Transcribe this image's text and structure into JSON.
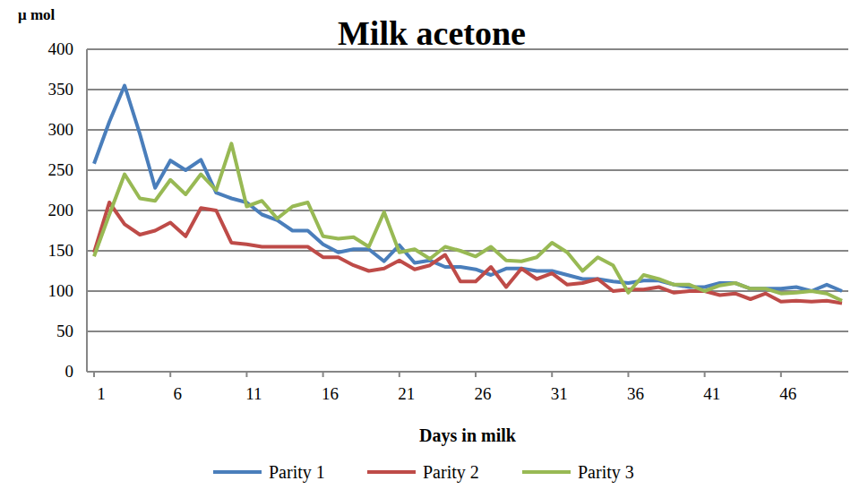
{
  "chart_data": {
    "type": "line",
    "title": "Milk acetone",
    "y_label": "μ mol",
    "x_label": "Days in milk",
    "x": [
      1,
      2,
      3,
      4,
      5,
      6,
      7,
      8,
      9,
      10,
      11,
      12,
      13,
      14,
      15,
      16,
      17,
      18,
      19,
      20,
      21,
      22,
      23,
      24,
      25,
      26,
      27,
      28,
      29,
      30,
      31,
      32,
      33,
      34,
      35,
      36,
      37,
      38,
      39,
      40,
      41,
      42,
      43,
      44,
      45,
      46,
      47,
      48,
      49,
      50
    ],
    "xlim": [
      1,
      50
    ],
    "xticks": [
      1,
      6,
      11,
      16,
      21,
      26,
      31,
      36,
      41,
      46
    ],
    "ylim": [
      0,
      400
    ],
    "yticks": [
      0,
      50,
      100,
      150,
      200,
      250,
      300,
      350,
      400
    ],
    "grid": true,
    "legend": "bottom",
    "series": [
      {
        "name": "Parity 1",
        "color": "#4a7ebb",
        "values": [
          258,
          310,
          355,
          295,
          228,
          262,
          250,
          263,
          222,
          215,
          210,
          195,
          188,
          175,
          175,
          158,
          148,
          152,
          152,
          137,
          157,
          135,
          138,
          130,
          130,
          127,
          120,
          128,
          128,
          125,
          125,
          120,
          115,
          115,
          112,
          110,
          113,
          113,
          108,
          105,
          105,
          110,
          110,
          103,
          103,
          103,
          105,
          100,
          108,
          100
        ]
      },
      {
        "name": "Parity 2",
        "color": "#be4b48",
        "values": [
          148,
          210,
          183,
          170,
          175,
          185,
          168,
          203,
          200,
          160,
          158,
          155,
          155,
          155,
          155,
          142,
          142,
          132,
          125,
          128,
          138,
          127,
          132,
          145,
          112,
          112,
          130,
          105,
          128,
          115,
          122,
          108,
          110,
          115,
          100,
          102,
          102,
          105,
          98,
          100,
          100,
          95,
          97,
          90,
          97,
          87,
          88,
          87,
          88,
          85
        ]
      },
      {
        "name": "Parity 3",
        "color": "#98b954",
        "values": [
          143,
          195,
          245,
          215,
          212,
          238,
          220,
          245,
          225,
          283,
          205,
          212,
          190,
          205,
          210,
          168,
          165,
          167,
          155,
          198,
          148,
          152,
          140,
          155,
          150,
          143,
          155,
          138,
          137,
          142,
          160,
          148,
          125,
          142,
          132,
          98,
          120,
          115,
          108,
          108,
          100,
          107,
          110,
          103,
          103,
          97,
          98,
          100,
          97,
          88
        ]
      }
    ]
  }
}
